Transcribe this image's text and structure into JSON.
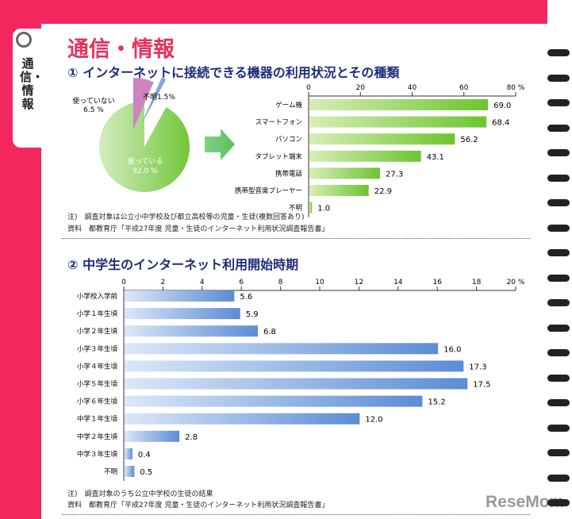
{
  "side_tab": {
    "label": "通信・情報",
    "icon": "globe-wifi-icon"
  },
  "page_title": "通信・情報",
  "section1": {
    "heading": "① インターネットに接続できる機器の利用状況とその種類",
    "note1": "注)　調査対象は公立小中学校及び都立高校等の児童・生徒(複数回答あり)",
    "note2": "資料　都教育庁「平成27年度 児童・生徒のインターネット利用状況調査報告書」"
  },
  "section2": {
    "heading": "② 中学生のインターネット利用開始時期",
    "note1": "注)　調査対象のうち公立中学校の生徒の結果",
    "note2": "資料　都教育庁「平成27年度 児童・生徒のインターネット利用状況調査報告書」"
  },
  "logo": "ReseMom",
  "chart_data": [
    {
      "type": "pie",
      "slices": [
        {
          "label": "使っている",
          "value": 92.0,
          "text": "92.0 %",
          "color": "#86cf4a"
        },
        {
          "label": "使っていない",
          "value": 6.5,
          "text": "6.5 %",
          "color": "#c879b8"
        },
        {
          "label": "不明",
          "value": 1.5,
          "text": "1.5%",
          "color": "#7f9fd0"
        }
      ]
    },
    {
      "type": "bar",
      "orientation": "horizontal",
      "categories": [
        "ゲーム機",
        "スマートフォン",
        "パソコン",
        "タブレット端末",
        "携帯電話",
        "携帯型音楽プレーヤー",
        "不明"
      ],
      "values": [
        69.0,
        68.4,
        56.2,
        43.1,
        27.3,
        22.9,
        1.0
      ],
      "xlim": [
        0,
        80
      ],
      "ticks": [
        "0",
        "20",
        "40",
        "60",
        "80 %"
      ],
      "color": "#7ccc3c"
    },
    {
      "type": "bar",
      "orientation": "horizontal",
      "categories": [
        "小学校入学前",
        "小学１年生頃",
        "小学２年生頃",
        "小学３年生頃",
        "小学４年生頃",
        "小学５年生頃",
        "小学６年生頃",
        "中学１年生頃",
        "中学２年生頃",
        "中学３年生頃",
        "不明"
      ],
      "values": [
        5.6,
        5.9,
        6.8,
        16.0,
        17.3,
        17.5,
        15.2,
        12.0,
        2.8,
        0.4,
        0.5
      ],
      "xlim": [
        0,
        20
      ],
      "ticks": [
        "0",
        "2",
        "4",
        "6",
        "8",
        "10",
        "12",
        "14",
        "16",
        "18",
        "20 %"
      ],
      "color": "#5f8fd6"
    }
  ]
}
